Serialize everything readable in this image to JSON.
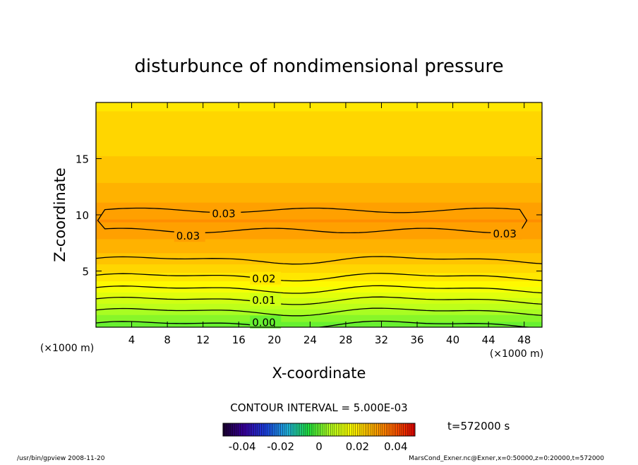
{
  "chart_data": {
    "type": "contour",
    "title": "disturbunce of nondimensional pressure",
    "xlabel": "X-coordinate",
    "ylabel": "Z-coordinate",
    "x_unit": "(×1000 m)",
    "y_unit": "(×1000 m)",
    "x_ticks": [
      "4",
      "8",
      "12",
      "16",
      "20",
      "24",
      "28",
      "32",
      "36",
      "40",
      "44",
      "48"
    ],
    "y_ticks": [
      "5",
      "10",
      "15"
    ],
    "xlim": [
      0,
      50
    ],
    "ylim": [
      0,
      20
    ],
    "grid": false,
    "contour_interval_label": "CONTOUR INTERVAL = 5.000E-03",
    "contour_levels": [
      0.0,
      0.005,
      0.01,
      0.015,
      0.02,
      0.025,
      0.03
    ],
    "contour_labels": [
      {
        "text": "0.00",
        "x": 17.5,
        "z": 0.4
      },
      {
        "text": "0.01",
        "x": 17.5,
        "z": 2.4
      },
      {
        "text": "0.02",
        "x": 17.5,
        "z": 4.3
      },
      {
        "text": "0.03",
        "x": 13.0,
        "z": 10.1
      },
      {
        "text": "0.03",
        "x": 9.0,
        "z": 8.1
      },
      {
        "text": "0.03",
        "x": 44.5,
        "z": 8.3
      }
    ],
    "field_profile": [
      {
        "z": 0.0,
        "value": -0.001
      },
      {
        "z": 1.0,
        "value": 0.003
      },
      {
        "z": 2.0,
        "value": 0.008
      },
      {
        "z": 3.0,
        "value": 0.013
      },
      {
        "z": 4.0,
        "value": 0.018
      },
      {
        "z": 5.0,
        "value": 0.022
      },
      {
        "z": 6.0,
        "value": 0.025
      },
      {
        "z": 7.0,
        "value": 0.027
      },
      {
        "z": 8.0,
        "value": 0.029
      },
      {
        "z": 9.5,
        "value": 0.0315
      },
      {
        "z": 11.0,
        "value": 0.029
      },
      {
        "z": 13.0,
        "value": 0.026
      },
      {
        "z": 15.0,
        "value": 0.024
      },
      {
        "z": 17.0,
        "value": 0.022
      },
      {
        "z": 20.0,
        "value": 0.021
      }
    ],
    "colorbar": {
      "min": -0.05,
      "max": 0.05,
      "tick_labels": [
        "-0.04",
        "-0.02",
        "0",
        "0.02",
        "0.04"
      ],
      "tick_values": [
        -0.04,
        -0.02,
        0,
        0.02,
        0.04
      ],
      "colors": [
        "#1a0030",
        "#3a00a0",
        "#1a40e0",
        "#20b0e0",
        "#20e040",
        "#b0ff20",
        "#ffff00",
        "#ffb000",
        "#ff6000",
        "#e00000"
      ]
    },
    "time_label": "t=572000  s"
  },
  "footer": {
    "left": "/usr/bin/gpview   2008-11-20",
    "right": "MarsCond_Exner.nc@Exner,x=0:50000,z=0:20000,t=572000"
  }
}
